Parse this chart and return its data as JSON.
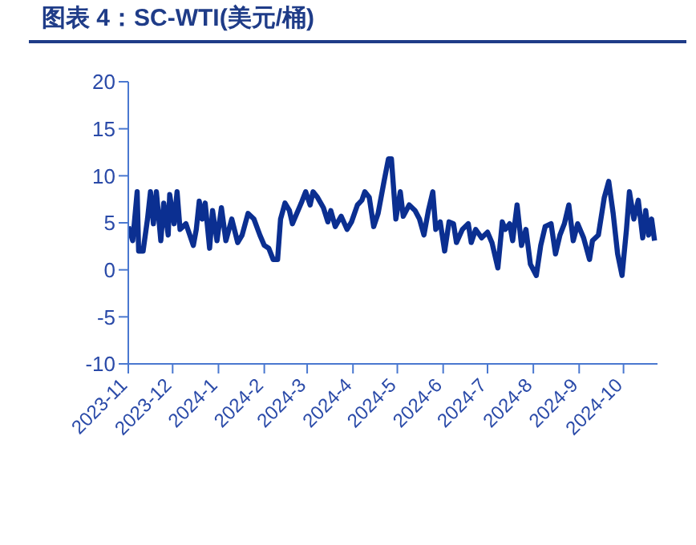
{
  "chart_data": {
    "type": "line",
    "title": "图表 4：SC-WTI(美元/桶)",
    "x": [
      "2023-11-01",
      "2023-11-04",
      "2023-11-07",
      "2023-11-08",
      "2023-11-11",
      "2023-11-14",
      "2023-11-16",
      "2023-11-18",
      "2023-11-20",
      "2023-11-23",
      "2023-11-25",
      "2023-11-28",
      "2023-11-29",
      "2023-12-02",
      "2023-12-04",
      "2023-12-06",
      "2023-12-10",
      "2023-12-15",
      "2023-12-17",
      "2023-12-19",
      "2023-12-21",
      "2023-12-23",
      "2023-12-26",
      "2023-12-28",
      "2023-12-31",
      "2024-01-03",
      "2024-01-06",
      "2024-01-10",
      "2024-01-14",
      "2024-01-17",
      "2024-01-21",
      "2024-01-25",
      "2024-01-29",
      "2024-02-01",
      "2024-02-04",
      "2024-02-07",
      "2024-02-10",
      "2024-02-12",
      "2024-02-15",
      "2024-02-18",
      "2024-02-20",
      "2024-02-23",
      "2024-02-26",
      "2024-02-29",
      "2024-03-03",
      "2024-03-05",
      "2024-03-08",
      "2024-03-12",
      "2024-03-15",
      "2024-03-17",
      "2024-03-20",
      "2024-03-24",
      "2024-03-28",
      "2024-03-31",
      "2024-04-04",
      "2024-04-07",
      "2024-04-09",
      "2024-04-12",
      "2024-04-15",
      "2024-04-18",
      "2024-04-22",
      "2024-04-25",
      "2024-04-27",
      "2024-04-30",
      "2024-05-03",
      "2024-05-05",
      "2024-05-09",
      "2024-05-13",
      "2024-05-16",
      "2024-05-19",
      "2024-05-22",
      "2024-05-25",
      "2024-05-27",
      "2024-05-30",
      "2024-06-02",
      "2024-06-05",
      "2024-06-08",
      "2024-06-10",
      "2024-06-14",
      "2024-06-18",
      "2024-06-20",
      "2024-06-23",
      "2024-06-27",
      "2024-07-01",
      "2024-07-04",
      "2024-07-08",
      "2024-07-11",
      "2024-07-13",
      "2024-07-16",
      "2024-07-18",
      "2024-07-21",
      "2024-07-24",
      "2024-07-27",
      "2024-07-30",
      "2024-08-03",
      "2024-08-06",
      "2024-08-09",
      "2024-08-13",
      "2024-08-16",
      "2024-08-19",
      "2024-08-22",
      "2024-08-25",
      "2024-08-28",
      "2024-08-31",
      "2024-09-04",
      "2024-09-08",
      "2024-09-10",
      "2024-09-14",
      "2024-09-18",
      "2024-09-21",
      "2024-09-24",
      "2024-09-27",
      "2024-09-30",
      "2024-10-03",
      "2024-10-05",
      "2024-10-08",
      "2024-10-11",
      "2024-10-14",
      "2024-10-16",
      "2024-10-18",
      "2024-10-20",
      "2024-10-22"
    ],
    "series": [
      {
        "color": "#0b2f91",
        "values": [
          4.6,
          3.1,
          8.3,
          2,
          2,
          5.4,
          8.3,
          4.9,
          8.3,
          3.1,
          7.1,
          3.7,
          8,
          4.9,
          8.3,
          4.3,
          4.9,
          2.6,
          4.3,
          7.3,
          5.4,
          7.1,
          2.3,
          6.3,
          3.1,
          6.6,
          3.1,
          5.4,
          2.9,
          3.7,
          6,
          5.4,
          3.7,
          2.6,
          2.3,
          1.1,
          1.1,
          5.4,
          7.1,
          6.3,
          4.9,
          6,
          7.1,
          8.3,
          6.9,
          8.3,
          7.7,
          6.6,
          5.1,
          6.3,
          4.6,
          5.7,
          4.3,
          5.1,
          6.9,
          7.4,
          8.3,
          7.7,
          4.6,
          6,
          9.4,
          11.8,
          11.8,
          5.4,
          8.3,
          5.7,
          6.9,
          6.3,
          5.4,
          3.7,
          6.3,
          8.3,
          4.3,
          5.1,
          2,
          5.1,
          4.9,
          2.9,
          4.3,
          4.9,
          2.9,
          4.3,
          3.4,
          4,
          2.9,
          0.2,
          5.1,
          4.3,
          4.9,
          3.1,
          6.9,
          2.6,
          4.3,
          0.6,
          -0.6,
          2.6,
          4.6,
          4.9,
          1.7,
          3.7,
          4.9,
          6.9,
          3.1,
          4.9,
          3.4,
          1.1,
          3.1,
          3.7,
          7.7,
          9.4,
          6,
          1.7,
          -0.6,
          4.3,
          8.3,
          5.4,
          7.4,
          3.4,
          6.3,
          3.7,
          5.4,
          3.1
        ]
      }
    ],
    "xlim": [
      "2023-11-01",
      "2024-10-24"
    ],
    "xticks": [
      {
        "value": "2023-11-01",
        "label": "2023-11"
      },
      {
        "value": "2023-12-01",
        "label": "2023-12"
      },
      {
        "value": "2024-01-01",
        "label": "2024-1"
      },
      {
        "value": "2024-02-01",
        "label": "2024-2"
      },
      {
        "value": "2024-03-01",
        "label": "2024-3"
      },
      {
        "value": "2024-04-01",
        "label": "2024-4"
      },
      {
        "value": "2024-05-01",
        "label": "2024-5"
      },
      {
        "value": "2024-06-01",
        "label": "2024-6"
      },
      {
        "value": "2024-07-01",
        "label": "2024-7"
      },
      {
        "value": "2024-08-01",
        "label": "2024-8"
      },
      {
        "value": "2024-09-01",
        "label": "2024-9"
      },
      {
        "value": "2024-10-01",
        "label": "2024-10"
      }
    ],
    "ylim": [
      -10,
      20
    ],
    "yticks": [
      -10,
      -5,
      0,
      5,
      10,
      15,
      20
    ],
    "grid": false,
    "legend": false,
    "marker": "none",
    "line_style": "solid"
  }
}
